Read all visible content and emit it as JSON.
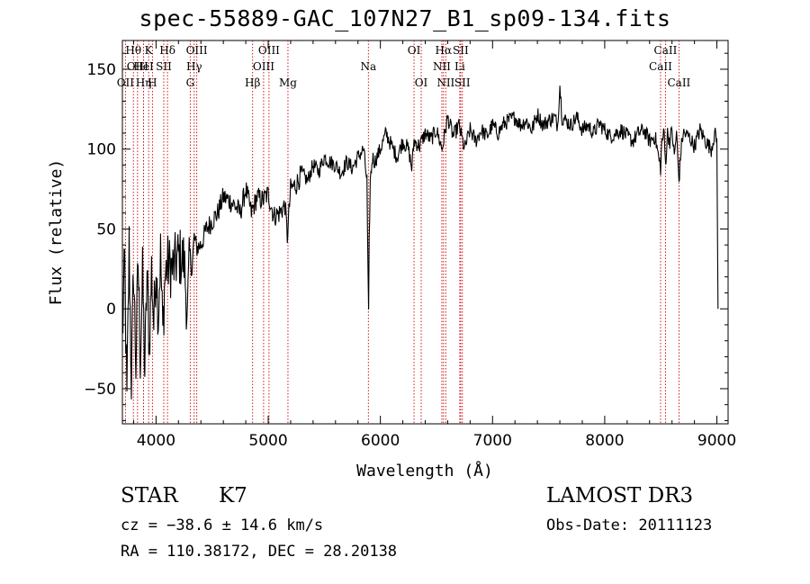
{
  "chart_data": {
    "type": "line",
    "title": "spec-55889-GAC_107N27_B1_sp09-134.fits",
    "xlabel": "Wavelength (Å)",
    "ylabel": "Flux (relative)",
    "xlim": [
      3700,
      9100
    ],
    "ylim": [
      -72,
      168
    ],
    "xticks": [
      4000,
      5000,
      6000,
      7000,
      8000,
      9000
    ],
    "yticks": [
      -50,
      0,
      50,
      100,
      150
    ],
    "grid": false,
    "series": [
      {
        "x": [
          3700,
          3720,
          3740,
          3760,
          3780,
          3800,
          3820,
          3840,
          3860,
          3880,
          3900,
          3920,
          3940,
          3960,
          3980,
          4000,
          4020,
          4040,
          4060,
          4080,
          4100,
          4150,
          4200,
          4250,
          4280,
          4300,
          4320,
          4340,
          4360,
          4400,
          4450,
          4500,
          4550,
          4600,
          4650,
          4700,
          4750,
          4800,
          4850,
          4900,
          4950,
          5000,
          5050,
          5100,
          5150,
          5170,
          5180,
          5200,
          5250,
          5300,
          5350,
          5400,
          5450,
          5500,
          5550,
          5600,
          5650,
          5700,
          5750,
          5800,
          5850,
          5880,
          5890,
          5895,
          5900,
          5910,
          5930,
          5950,
          6000,
          6050,
          6100,
          6150,
          6200,
          6250,
          6280,
          6300,
          6350,
          6400,
          6450,
          6500,
          6550,
          6600,
          6650,
          6700,
          6750,
          6800,
          6850,
          6900,
          6950,
          7000,
          7050,
          7100,
          7150,
          7200,
          7250,
          7300,
          7350,
          7400,
          7450,
          7500,
          7550,
          7580,
          7600,
          7620,
          7650,
          7700,
          7750,
          7800,
          7850,
          7900,
          7950,
          8000,
          8050,
          8100,
          8150,
          8200,
          8250,
          8300,
          8350,
          8400,
          8450,
          8480,
          8498,
          8510,
          8530,
          8542,
          8560,
          8580,
          8600,
          8620,
          8640,
          8662,
          8680,
          8700,
          8750,
          8800,
          8850,
          8900,
          8950,
          8980,
          9000,
          9010
        ],
        "y": [
          -20,
          30,
          -60,
          40,
          -45,
          25,
          -35,
          30,
          -30,
          20,
          -40,
          22,
          -25,
          25,
          -10,
          30,
          -5,
          35,
          -15,
          20,
          28,
          25,
          33,
          30,
          -5,
          35,
          25,
          45,
          38,
          40,
          50,
          55,
          60,
          70,
          68,
          65,
          60,
          75,
          60,
          70,
          68,
          72,
          58,
          60,
          65,
          45,
          55,
          75,
          78,
          85,
          80,
          90,
          86,
          95,
          92,
          90,
          85,
          92,
          88,
          95,
          100,
          80,
          20,
          -5,
          40,
          80,
          95,
          92,
          100,
          110,
          102,
          95,
          105,
          100,
          88,
          105,
          102,
          110,
          106,
          112,
          100,
          120,
          108,
          115,
          100,
          112,
          105,
          112,
          108,
          115,
          110,
          116,
          118,
          120,
          115,
          118,
          112,
          122,
          115,
          118,
          120,
          115,
          140,
          120,
          118,
          115,
          120,
          112,
          115,
          110,
          116,
          112,
          108,
          110,
          112,
          108,
          105,
          110,
          112,
          105,
          108,
          95,
          88,
          105,
          110,
          90,
          110,
          105,
          112,
          95,
          110,
          80,
          100,
          110,
          108,
          102,
          112,
          105,
          100,
          110,
          105,
          0
        ]
      }
    ],
    "lines": [
      {
        "name": "OII",
        "x": 3727,
        "row": 2
      },
      {
        "name": "Hθ",
        "x": 3798,
        "row": 0
      },
      {
        "name": "OIII",
        "x": 3835,
        "row": 1
      },
      {
        "name": "Hη",
        "x": 3889,
        "row": 2
      },
      {
        "name": "HeI",
        "x": 3889,
        "row": 1
      },
      {
        "name": "K",
        "x": 3934,
        "row": 0
      },
      {
        "name": "H",
        "x": 3968,
        "row": 2
      },
      {
        "name": "SII",
        "x": 4069,
        "row": 1
      },
      {
        "name": "Hδ",
        "x": 4102,
        "row": 0
      },
      {
        "name": "G",
        "x": 4305,
        "row": 2
      },
      {
        "name": "Hγ",
        "x": 4340,
        "row": 1
      },
      {
        "name": "OIII",
        "x": 4363,
        "row": 0
      },
      {
        "name": "Hβ",
        "x": 4861,
        "row": 2
      },
      {
        "name": "OIII",
        "x": 4959,
        "row": 1
      },
      {
        "name": "OIII",
        "x": 5007,
        "row": 0
      },
      {
        "name": "Mg",
        "x": 5176,
        "row": 2
      },
      {
        "name": "Na",
        "x": 5893,
        "row": 1
      },
      {
        "name": "OI",
        "x": 6300,
        "row": 0
      },
      {
        "name": "OI",
        "x": 6364,
        "row": 2
      },
      {
        "name": "NII",
        "x": 6548,
        "row": 1
      },
      {
        "name": "Hα",
        "x": 6563,
        "row": 0
      },
      {
        "name": "NII",
        "x": 6583,
        "row": 2
      },
      {
        "name": "Li",
        "x": 6708,
        "row": 1
      },
      {
        "name": "SII",
        "x": 6716,
        "row": 0
      },
      {
        "name": "SII",
        "x": 6731,
        "row": 2
      },
      {
        "name": "CaII",
        "x": 8498,
        "row": 1
      },
      {
        "name": "CaII",
        "x": 8542,
        "row": 0
      },
      {
        "name": "CaII",
        "x": 8662,
        "row": 2
      }
    ]
  },
  "info": {
    "class": "STAR",
    "subclass": "K7",
    "cz": "cz = −38.6 ± 14.6 km/s",
    "coords": "RA = 110.38172, DEC =  28.20138",
    "survey": "LAMOST DR3",
    "obsdate": "Obs-Date: 20111123"
  }
}
